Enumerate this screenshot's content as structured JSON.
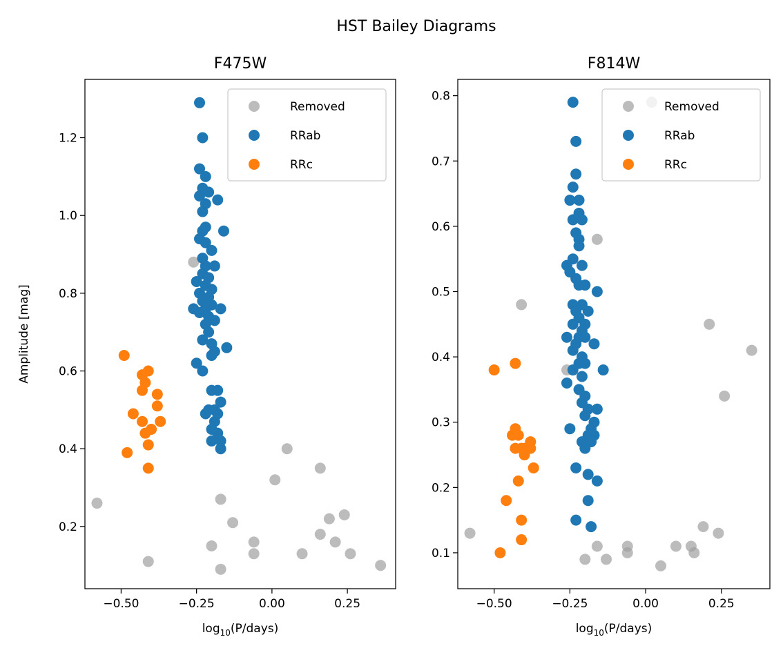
{
  "figure_title": "HST Bailey Diagrams",
  "colors": {
    "removed": "#a0a0a0",
    "rrab": "#1f77b4",
    "rrc": "#ff7f0e"
  },
  "chart_data": [
    {
      "type": "scatter",
      "title": "F475W",
      "xlabel_base": "log",
      "xlabel_sub": "10",
      "xlabel_rest": "(P/days)",
      "ylabel": "Amplitude [mag]",
      "xlim": [
        -0.62,
        0.41
      ],
      "ylim": [
        0.04,
        1.35
      ],
      "xticks": [
        -0.5,
        -0.25,
        0.0,
        0.25
      ],
      "xtick_labels": [
        "−0.50",
        "−0.25",
        "0.00",
        "0.25"
      ],
      "yticks": [
        0.2,
        0.4,
        0.6,
        0.8,
        1.0,
        1.2
      ],
      "ytick_labels": [
        "0.2",
        "0.4",
        "0.6",
        "0.8",
        "1.0",
        "1.2"
      ],
      "legend": [
        "Removed",
        "RRab",
        "RRc"
      ],
      "series": [
        {
          "name": "Removed",
          "alpha": 0.7,
          "points": [
            [
              -0.58,
              0.26
            ],
            [
              -0.41,
              0.11
            ],
            [
              -0.26,
              0.88
            ],
            [
              -0.2,
              0.15
            ],
            [
              -0.17,
              0.27
            ],
            [
              -0.17,
              0.09
            ],
            [
              -0.13,
              0.21
            ],
            [
              -0.06,
              0.16
            ],
            [
              -0.06,
              0.13
            ],
            [
              0.01,
              0.32
            ],
            [
              0.05,
              0.4
            ],
            [
              0.1,
              0.13
            ],
            [
              0.16,
              0.18
            ],
            [
              0.16,
              0.35
            ],
            [
              0.19,
              0.22
            ],
            [
              0.21,
              0.16
            ],
            [
              0.24,
              0.23
            ],
            [
              0.26,
              0.13
            ],
            [
              0.36,
              0.1
            ]
          ]
        },
        {
          "name": "RRab",
          "alpha": 1,
          "points": [
            [
              -0.24,
              1.29
            ],
            [
              -0.23,
              1.2
            ],
            [
              -0.24,
              1.12
            ],
            [
              -0.22,
              1.1
            ],
            [
              -0.23,
              1.07
            ],
            [
              -0.21,
              1.06
            ],
            [
              -0.24,
              1.05
            ],
            [
              -0.22,
              1.03
            ],
            [
              -0.18,
              1.04
            ],
            [
              -0.23,
              1.01
            ],
            [
              -0.22,
              0.97
            ],
            [
              -0.23,
              0.96
            ],
            [
              -0.16,
              0.96
            ],
            [
              -0.24,
              0.94
            ],
            [
              -0.22,
              0.93
            ],
            [
              -0.2,
              0.91
            ],
            [
              -0.23,
              0.89
            ],
            [
              -0.22,
              0.87
            ],
            [
              -0.19,
              0.87
            ],
            [
              -0.23,
              0.85
            ],
            [
              -0.21,
              0.84
            ],
            [
              -0.25,
              0.83
            ],
            [
              -0.22,
              0.82
            ],
            [
              -0.2,
              0.81
            ],
            [
              -0.24,
              0.8
            ],
            [
              -0.21,
              0.79
            ],
            [
              -0.23,
              0.78
            ],
            [
              -0.2,
              0.77
            ],
            [
              -0.22,
              0.76
            ],
            [
              -0.26,
              0.76
            ],
            [
              -0.17,
              0.76
            ],
            [
              -0.24,
              0.75
            ],
            [
              -0.21,
              0.74
            ],
            [
              -0.19,
              0.73
            ],
            [
              -0.22,
              0.72
            ],
            [
              -0.21,
              0.7
            ],
            [
              -0.23,
              0.68
            ],
            [
              -0.2,
              0.67
            ],
            [
              -0.15,
              0.66
            ],
            [
              -0.19,
              0.65
            ],
            [
              -0.2,
              0.64
            ],
            [
              -0.25,
              0.62
            ],
            [
              -0.23,
              0.6
            ],
            [
              -0.2,
              0.55
            ],
            [
              -0.18,
              0.55
            ],
            [
              -0.17,
              0.52
            ],
            [
              -0.21,
              0.5
            ],
            [
              -0.19,
              0.5
            ],
            [
              -0.22,
              0.49
            ],
            [
              -0.18,
              0.49
            ],
            [
              -0.19,
              0.47
            ],
            [
              -0.2,
              0.45
            ],
            [
              -0.18,
              0.44
            ],
            [
              -0.2,
              0.42
            ],
            [
              -0.17,
              0.42
            ],
            [
              -0.17,
              0.4
            ]
          ]
        },
        {
          "name": "RRc",
          "alpha": 1,
          "points": [
            [
              -0.49,
              0.64
            ],
            [
              -0.41,
              0.6
            ],
            [
              -0.43,
              0.59
            ],
            [
              -0.42,
              0.57
            ],
            [
              -0.43,
              0.55
            ],
            [
              -0.38,
              0.54
            ],
            [
              -0.38,
              0.51
            ],
            [
              -0.46,
              0.49
            ],
            [
              -0.43,
              0.47
            ],
            [
              -0.37,
              0.47
            ],
            [
              -0.4,
              0.45
            ],
            [
              -0.42,
              0.44
            ],
            [
              -0.41,
              0.41
            ],
            [
              -0.48,
              0.39
            ],
            [
              -0.41,
              0.35
            ]
          ]
        }
      ]
    },
    {
      "type": "scatter",
      "title": "F814W",
      "xlabel_base": "log",
      "xlabel_sub": "10",
      "xlabel_rest": "(P/days)",
      "ylabel": "",
      "xlim": [
        -0.62,
        0.41
      ],
      "ylim": [
        0.045,
        0.825
      ],
      "xticks": [
        -0.5,
        -0.25,
        0.0,
        0.25
      ],
      "xtick_labels": [
        "−0.50",
        "−0.25",
        "0.00",
        "0.25"
      ],
      "yticks": [
        0.1,
        0.2,
        0.3,
        0.4,
        0.5,
        0.6,
        0.7,
        0.8
      ],
      "ytick_labels": [
        "0.1",
        "0.2",
        "0.3",
        "0.4",
        "0.5",
        "0.6",
        "0.7",
        "0.8"
      ],
      "legend": [
        "Removed",
        "RRab",
        "RRc"
      ],
      "series": [
        {
          "name": "Removed",
          "alpha": 0.7,
          "points": [
            [
              -0.58,
              0.13
            ],
            [
              -0.41,
              0.48
            ],
            [
              -0.26,
              0.38
            ],
            [
              -0.2,
              0.09
            ],
            [
              -0.16,
              0.58
            ],
            [
              -0.16,
              0.11
            ],
            [
              -0.13,
              0.09
            ],
            [
              -0.06,
              0.11
            ],
            [
              -0.06,
              0.1
            ],
            [
              0.02,
              0.79
            ],
            [
              0.05,
              0.08
            ],
            [
              0.1,
              0.11
            ],
            [
              0.15,
              0.11
            ],
            [
              0.16,
              0.1
            ],
            [
              0.19,
              0.14
            ],
            [
              0.21,
              0.45
            ],
            [
              0.24,
              0.13
            ],
            [
              0.26,
              0.34
            ],
            [
              0.35,
              0.41
            ]
          ]
        },
        {
          "name": "RRab",
          "alpha": 1,
          "points": [
            [
              -0.24,
              0.79
            ],
            [
              -0.23,
              0.73
            ],
            [
              -0.23,
              0.68
            ],
            [
              -0.24,
              0.66
            ],
            [
              -0.22,
              0.64
            ],
            [
              -0.25,
              0.64
            ],
            [
              -0.22,
              0.62
            ],
            [
              -0.21,
              0.61
            ],
            [
              -0.24,
              0.61
            ],
            [
              -0.23,
              0.59
            ],
            [
              -0.22,
              0.58
            ],
            [
              -0.22,
              0.57
            ],
            [
              -0.24,
              0.55
            ],
            [
              -0.26,
              0.54
            ],
            [
              -0.21,
              0.54
            ],
            [
              -0.25,
              0.53
            ],
            [
              -0.23,
              0.52
            ],
            [
              -0.22,
              0.51
            ],
            [
              -0.2,
              0.51
            ],
            [
              -0.16,
              0.5
            ],
            [
              -0.24,
              0.48
            ],
            [
              -0.21,
              0.48
            ],
            [
              -0.19,
              0.47
            ],
            [
              -0.23,
              0.47
            ],
            [
              -0.22,
              0.46
            ],
            [
              -0.2,
              0.45
            ],
            [
              -0.24,
              0.45
            ],
            [
              -0.21,
              0.44
            ],
            [
              -0.22,
              0.43
            ],
            [
              -0.26,
              0.43
            ],
            [
              -0.2,
              0.43
            ],
            [
              -0.23,
              0.42
            ],
            [
              -0.17,
              0.42
            ],
            [
              -0.24,
              0.41
            ],
            [
              -0.21,
              0.4
            ],
            [
              -0.22,
              0.39
            ],
            [
              -0.2,
              0.39
            ],
            [
              -0.24,
              0.38
            ],
            [
              -0.14,
              0.38
            ],
            [
              -0.21,
              0.37
            ],
            [
              -0.26,
              0.36
            ],
            [
              -0.22,
              0.35
            ],
            [
              -0.2,
              0.34
            ],
            [
              -0.21,
              0.33
            ],
            [
              -0.19,
              0.32
            ],
            [
              -0.16,
              0.32
            ],
            [
              -0.2,
              0.31
            ],
            [
              -0.17,
              0.3
            ],
            [
              -0.18,
              0.29
            ],
            [
              -0.25,
              0.29
            ],
            [
              -0.19,
              0.28
            ],
            [
              -0.17,
              0.28
            ],
            [
              -0.21,
              0.27
            ],
            [
              -0.2,
              0.26
            ],
            [
              -0.18,
              0.27
            ],
            [
              -0.23,
              0.23
            ],
            [
              -0.19,
              0.22
            ],
            [
              -0.16,
              0.21
            ],
            [
              -0.19,
              0.18
            ],
            [
              -0.23,
              0.15
            ],
            [
              -0.18,
              0.14
            ]
          ]
        },
        {
          "name": "RRc",
          "alpha": 1,
          "points": [
            [
              -0.5,
              0.38
            ],
            [
              -0.43,
              0.39
            ],
            [
              -0.43,
              0.29
            ],
            [
              -0.42,
              0.28
            ],
            [
              -0.44,
              0.28
            ],
            [
              -0.38,
              0.27
            ],
            [
              -0.41,
              0.26
            ],
            [
              -0.43,
              0.26
            ],
            [
              -0.4,
              0.26
            ],
            [
              -0.38,
              0.26
            ],
            [
              -0.4,
              0.25
            ],
            [
              -0.37,
              0.23
            ],
            [
              -0.42,
              0.21
            ],
            [
              -0.46,
              0.18
            ],
            [
              -0.41,
              0.15
            ],
            [
              -0.41,
              0.12
            ],
            [
              -0.48,
              0.1
            ]
          ]
        }
      ]
    }
  ]
}
